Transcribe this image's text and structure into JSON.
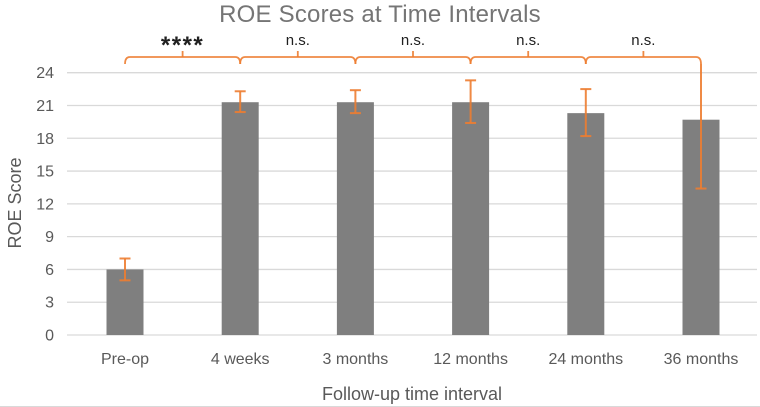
{
  "chart_data": {
    "type": "bar",
    "title": "ROE Scores at Time Intervals",
    "xlabel": "Follow-up time interval",
    "ylabel": "ROE Score",
    "categories": [
      "Pre-op",
      "4 weeks",
      "3 months",
      "12 months",
      "24 months",
      "36 months"
    ],
    "values": [
      6.0,
      21.3,
      21.3,
      21.3,
      20.3,
      19.7
    ],
    "error_bars": {
      "upper": [
        7.0,
        22.3,
        22.4,
        23.3,
        22.5,
        24.8
      ],
      "lower": [
        5.0,
        20.4,
        20.3,
        19.4,
        18.2,
        13.4
      ],
      "top_cap_visible": [
        true,
        true,
        true,
        true,
        true,
        false
      ]
    },
    "significance": [
      {
        "pair": [
          "Pre-op",
          "4 weeks"
        ],
        "label": "****"
      },
      {
        "pair": [
          "4 weeks",
          "3 months"
        ],
        "label": "n.s."
      },
      {
        "pair": [
          "3 months",
          "12 months"
        ],
        "label": "n.s."
      },
      {
        "pair": [
          "12 months",
          "24 months"
        ],
        "label": "n.s."
      },
      {
        "pair": [
          "24 months",
          "36 months"
        ],
        "label": "n.s."
      }
    ],
    "ylim": [
      0,
      24
    ],
    "ytick_step": 3,
    "ytick_labels": [
      "0",
      "3",
      "6",
      "9",
      "12",
      "15",
      "18",
      "21",
      "24"
    ],
    "grid": true,
    "legend_position": "none",
    "colors": {
      "bar": "#7F7F7F",
      "error_bar": "#ED7D31",
      "bracket": "#ED7D31",
      "gridline": "#D9D9D9",
      "axis_text": "#595959",
      "title_text": "#757575",
      "significance_text": "#1F1F1F",
      "background": "#FFFFFF"
    }
  }
}
